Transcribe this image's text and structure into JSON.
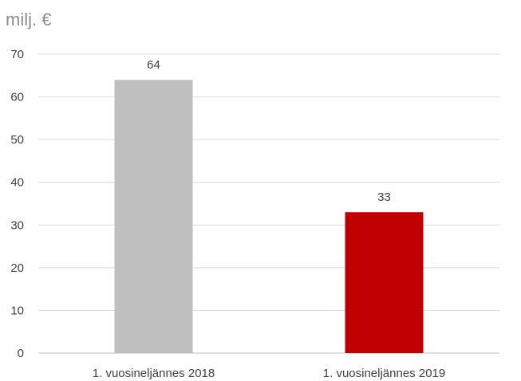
{
  "unit_label": "milj. €",
  "chart_data": {
    "type": "bar",
    "categories": [
      "1. vuosineljännes 2018",
      "1. vuosineljännes 2019"
    ],
    "values": [
      64,
      33
    ],
    "bar_colors": [
      "#bfbfbf",
      "#c00000"
    ],
    "data_labels": [
      "64",
      "33"
    ],
    "ylabel": "milj. €",
    "xlabel": "",
    "ylim": [
      0,
      70
    ],
    "yticks": [
      0,
      10,
      20,
      30,
      40,
      50,
      60,
      70
    ],
    "grid": true,
    "legend": "none"
  }
}
